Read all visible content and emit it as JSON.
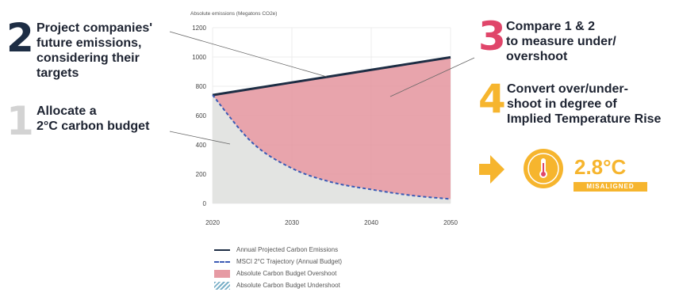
{
  "chart_data": {
    "type": "area",
    "ylabel": "Absolute emissions (Megatons CO2e)",
    "x": [
      2020,
      2025,
      2030,
      2035,
      2040,
      2045,
      2050
    ],
    "xticks": [
      2020,
      2030,
      2040,
      2050
    ],
    "yticks": [
      0,
      200,
      400,
      600,
      800,
      1000,
      1200
    ],
    "xlim": [
      2020,
      2050
    ],
    "ylim": [
      0,
      1200
    ],
    "grid": true,
    "series": [
      {
        "name": "Annual Projected Carbon Emissions",
        "values": [
          740,
          783,
          826,
          869,
          912,
          955,
          998
        ]
      },
      {
        "name": "MSCI 2°C Trajectory (Annual Budget)",
        "values": [
          740,
          415,
          240,
          145,
          95,
          55,
          30
        ]
      }
    ],
    "legend": [
      "Annual Projected Carbon Emissions",
      "MSCI 2°C Trajectory (Annual Budget)",
      "Absolute Carbon Budget Overshoot",
      "Absolute Carbon Budget Undershoot"
    ],
    "legend_position": "bottom"
  },
  "steps": {
    "step1": {
      "num": "1",
      "line1": "Allocate a",
      "line2": "2°C carbon budget"
    },
    "step2": {
      "num": "2",
      "line1": "Project companies'",
      "line2": "future emissions,",
      "line3": "considering their",
      "line4": "targets"
    },
    "step3": {
      "num": "3",
      "line1": "Compare 1 & 2",
      "line2": "to measure under/",
      "line3": "overshoot"
    },
    "step4": {
      "num": "4",
      "line1": "Convert over/under-",
      "line2": "shoot in degree of",
      "line3": "Implied Temperature Rise"
    }
  },
  "result": {
    "temperature": "2.8°C",
    "status": "MISALIGNED"
  },
  "colors": {
    "navy": "#1d2d44",
    "pink": "#e0466a",
    "yellow": "#f6b52e",
    "overshoot": "#e69aa3",
    "budget_area": "#e3e4e2"
  },
  "icons": {
    "arrow": "arrow-right-icon",
    "thermometer": "thermometer-icon"
  }
}
